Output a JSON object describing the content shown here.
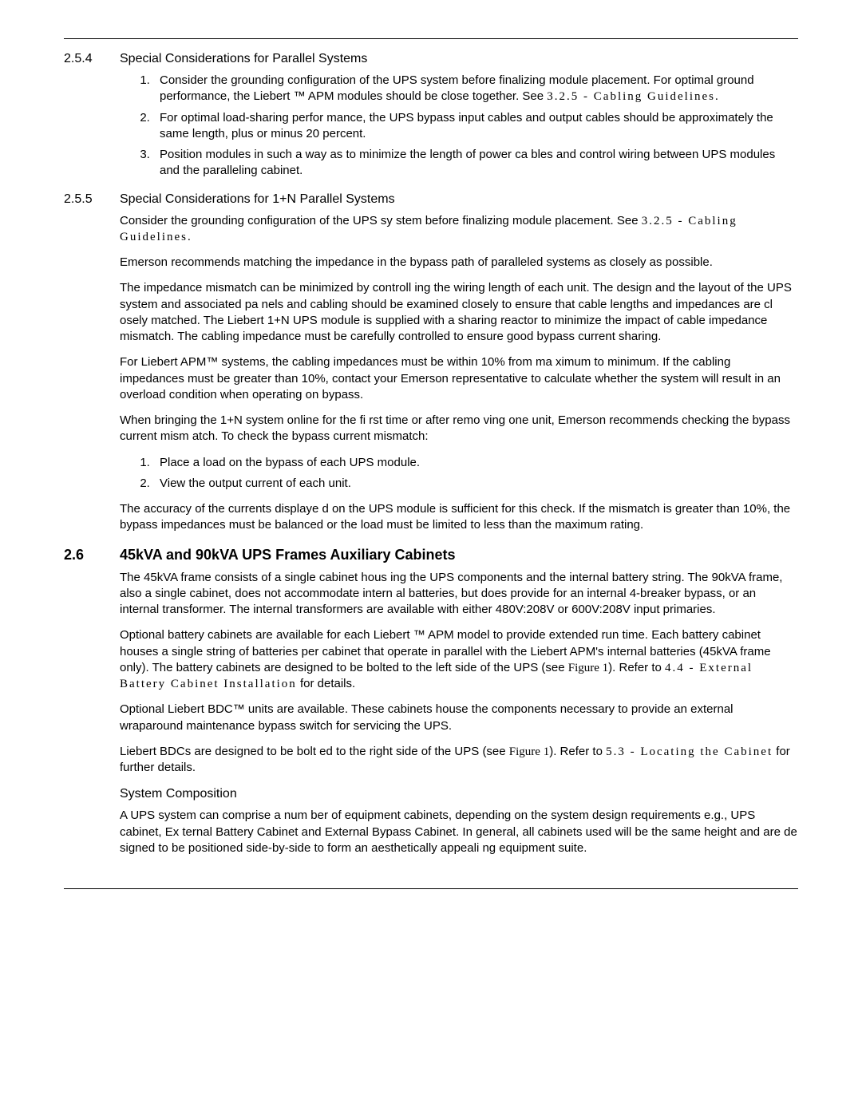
{
  "section_254": {
    "number": "2.5.4",
    "title": "Special Considerations for Parallel Systems",
    "items": [
      "Consider the grounding configuration of the UPS    system before finalizing   module placement. For optimal ground performance, the Liebert   ™ APM    modules should be close together. See ",
      "For optimal load-sharing perfor   mance, the UPS bypass input cables   and output cables should be approximately the same length, plus or minus 20 percent.",
      "Position modules in such a way as to minimize    the length of power ca  bles and control wiring between UPS modules and the paralleling cabinet."
    ],
    "ref1": "3.2.5 - Cabling Guidelines."
  },
  "section_255": {
    "number": "2.5.5",
    "title": "Special Considerations for 1+N Parallel Systems",
    "p1a": "Consider the grounding configuration of the UPS sy    stem before finalizing module placement. See ",
    "p1_ref": "3.2.5 - Cabling Guidelines.",
    "p2": "Emerson recommends matching the impedance in the    bypass path of paralleled systems as closely as possible.",
    "p3": "The impedance mismatch can be minimized by controll    ing the wiring length of    each unit. The design and the layout of the UPS system and associated pa   nels and cabling should be examined closely to ensure that cable lengths and impedances are cl   osely matched. The Liebert 1+N UPS module is supplied with a sharing reactor to minimize the impact of cable impedance mismatch. The cabling impedance must be carefully   controlled to ensure good  bypass current sharing.",
    "p4": "For Liebert APM™ systems, the cabling impedances must be   within 10% from ma  ximum to minimum. If the cabling impedances must be greater than    10%, contact your Emerson representative to calculate whether the system will result in     an overload condition when operating on bypass.",
    "p5": "When bringing the 1+N system online for the fi    rst time or after remo   ving one unit, Emerson recommends checking the bypass current mism   atch. To check the bypass current mismatch:",
    "steps": [
      "Place a load on the bypass of each UPS module.",
      "View the output current of each unit."
    ],
    "p6": "The accuracy of the currents displaye   d on the UPS module is sufficient for this check. If the mismatch is greater than 10%, the bypass impedances must be   balanced or the load must  be limited to less than the maximum rating."
  },
  "section_26": {
    "number": "2.6",
    "title": "45kVA and 90kVA UPS Frames Auxiliary Cabinets",
    "p1": "The 45kVA frame consists of a single cabinet hous   ing the UPS components and the internal battery string. The 90kVA frame, also a single cabinet,    does not accommodate intern  al batteries, but does provide for an internal 4-breaker bypass, or an internal transformer. The internal transformers are available with either 480V:208V or 600V:208V input primaries.",
    "p2a": "Optional battery cabinets are available for each Liebert    ™ APM   model to provide  extended run time. Each battery cabinet houses a single string of batteries per cabinet that operate in parallel with the Liebert APM's internal batteries (45kVA frame only).     The battery cabinets are   designed to be bolted to the left side of the UPS (see  ",
    "p2_fig": "Figure 1",
    "p2b": "). Refer to ",
    "p2_ref": "4.4 - External Battery Cabinet Installation",
    "p2c": " for details.",
    "p3": "Optional Liebert BDC™ units are available. These cabinets   house the components necessary to provide an external wraparound maintenance bypass switch for servicing the UPS.",
    "p4a": "Liebert BDCs are designed to be bolt   ed to the right side of the UPS (see  ",
    "p4_fig": "Figure 1",
    "p4b": "). Refer to ",
    "p4_ref": "5.3 - Locating the Cabinet",
    "p4c": " for further details.",
    "sub_heading": "System Composition",
    "p5": "A UPS system can comprise a num  ber of equipment cabinets, depending on the system design requirements e.g., UPS cabinet, Ex    ternal Battery Cabinet and External Bypass Cabinet. In general, all cabinets used will be the same height and are de   signed to be positioned  side-by-side to form an aesthetically appeali   ng equipment suite."
  }
}
